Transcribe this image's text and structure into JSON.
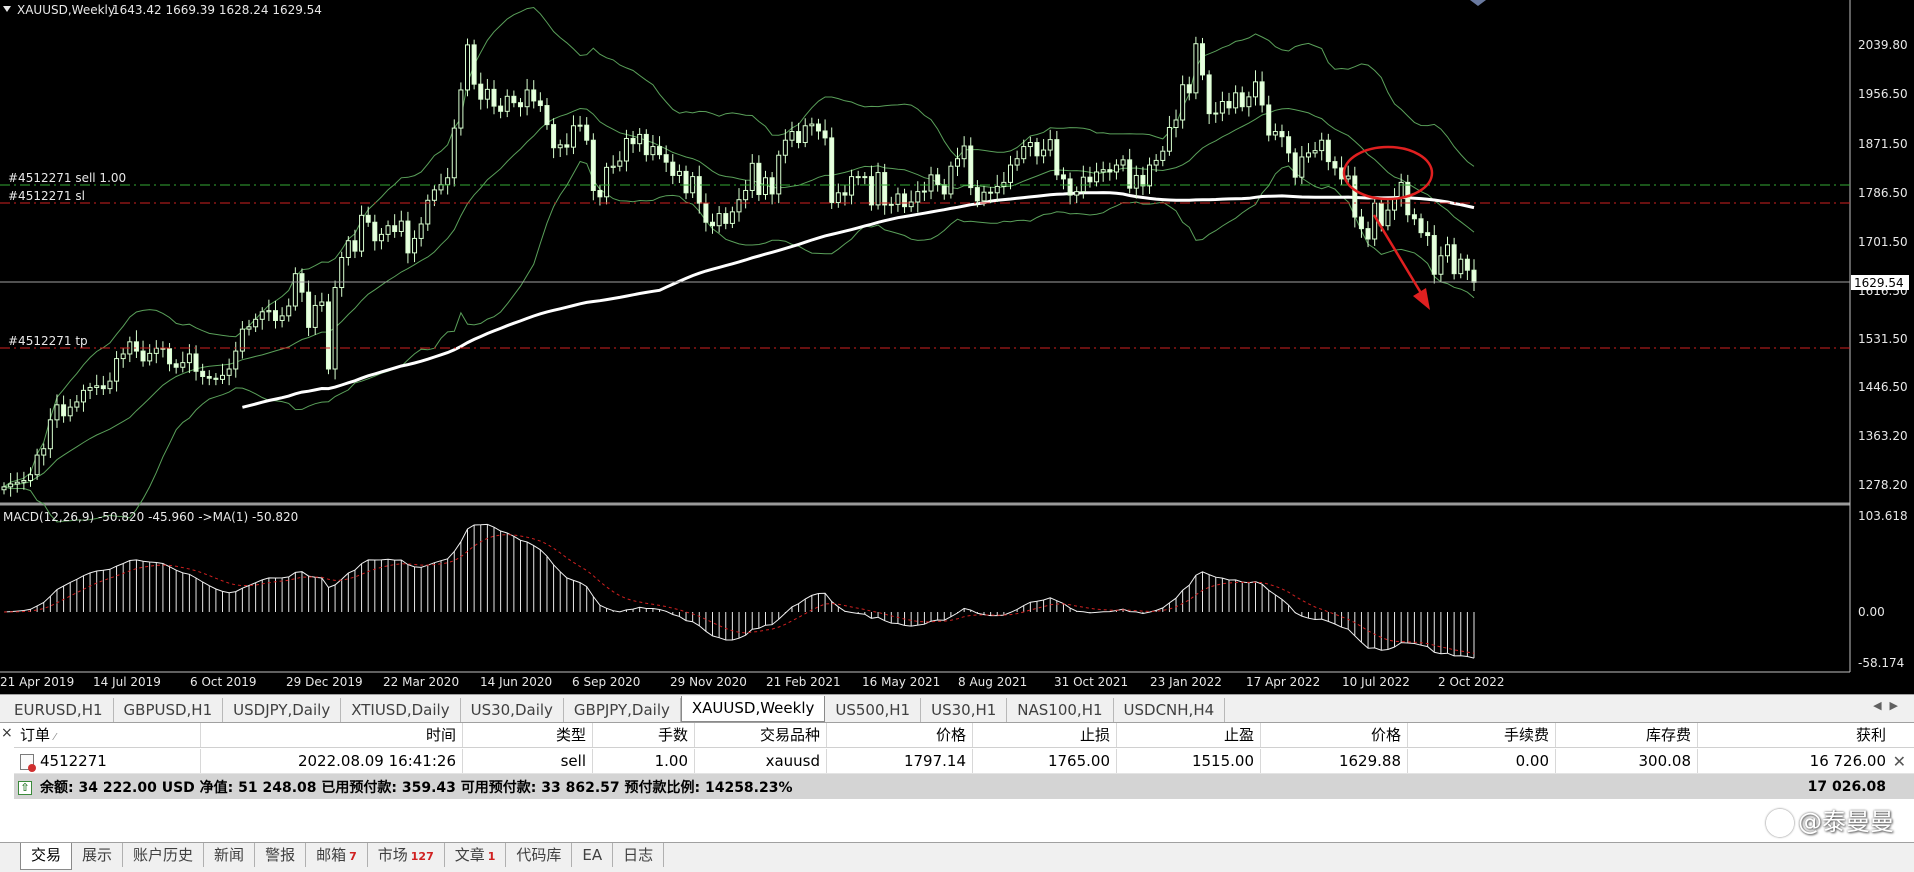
{
  "chart_header": {
    "symbol_label": "XAUUSD,Weekly",
    "ohlc": "1643.42 1669.39 1628.24 1629.54"
  },
  "price_axis": {
    "labels": [
      "2039.80",
      "1956.50",
      "1871.50",
      "1786.50",
      "1701.50",
      "1616.50",
      "1531.50",
      "1446.50",
      "1363.20",
      "1278.20"
    ],
    "current_price": "1629.54"
  },
  "macd_axis": {
    "labels": [
      "103.618",
      "0.00",
      "-58.174"
    ]
  },
  "macd_label": "MACD(12,26,9) -50.820 -45.960  ->MA(1) -50.820",
  "order_lines": {
    "sell_label": "#4512271 sell 1.00",
    "sl_label": "#4512271 sl",
    "tp_label": "#4512271 tp",
    "sell_price": 1797.14,
    "sl_price": 1765.0,
    "tp_price": 1515.0
  },
  "date_axis": [
    "21 Apr 2019",
    "14 Jul 2019",
    "6 Oct 2019",
    "29 Dec 2019",
    "22 Mar 2020",
    "14 Jun 2020",
    "6 Sep 2020",
    "29 Nov 2020",
    "21 Feb 2021",
    "16 May 2021",
    "8 Aug 2021",
    "31 Oct 2021",
    "23 Jan 2022",
    "17 Apr 2022",
    "10 Jul 2022",
    "2 Oct 2022"
  ],
  "chart_data": {
    "type": "candlestick",
    "symbol": "XAUUSD",
    "timeframe": "Weekly",
    "ylim": [
      1200,
      2110
    ],
    "weekly_close": [
      1275,
      1280,
      1283,
      1286,
      1296,
      1330,
      1341,
      1391,
      1417,
      1398,
      1413,
      1422,
      1442,
      1447,
      1450,
      1445,
      1458,
      1497,
      1505,
      1526,
      1510,
      1493,
      1506,
      1515,
      1514,
      1488,
      1482,
      1490,
      1505,
      1475,
      1466,
      1463,
      1461,
      1468,
      1479,
      1510,
      1548,
      1552,
      1565,
      1578,
      1580,
      1563,
      1571,
      1588,
      1644,
      1612,
      1551,
      1589,
      1595,
      1479,
      1620,
      1672,
      1701,
      1683,
      1745,
      1733,
      1701,
      1712,
      1727,
      1717,
      1735,
      1680,
      1705,
      1730,
      1771,
      1789,
      1798,
      1810,
      1896,
      1962,
      2040,
      1972,
      1946,
      1963,
      1934,
      1925,
      1951,
      1940,
      1933,
      1962,
      1943,
      1935,
      1902,
      1862,
      1867,
      1863,
      1900,
      1901,
      1875,
      1788,
      1777,
      1828,
      1830,
      1839,
      1878,
      1869,
      1885,
      1850,
      1864,
      1850,
      1837,
      1814,
      1821,
      1784,
      1812,
      1766,
      1733,
      1727,
      1748,
      1731,
      1751,
      1772,
      1788,
      1835,
      1781,
      1810,
      1782,
      1849,
      1875,
      1890,
      1871,
      1900,
      1903,
      1891,
      1879,
      1767,
      1784,
      1780,
      1812,
      1811,
      1812,
      1763,
      1819,
      1763,
      1764,
      1782,
      1760,
      1768,
      1786,
      1787,
      1815,
      1798,
      1782,
      1830,
      1843,
      1865,
      1793,
      1770,
      1785,
      1784,
      1795,
      1802,
      1832,
      1843,
      1864,
      1871,
      1848,
      1858,
      1876,
      1815,
      1808,
      1780,
      1786,
      1811,
      1803,
      1820,
      1824,
      1820,
      1832,
      1841,
      1792,
      1814,
      1796,
      1832,
      1840,
      1856,
      1897,
      1910,
      1971,
      1957,
      2042,
      1988,
      1921,
      1922,
      1942,
      1931,
      1957,
      1933,
      1950,
      1976,
      1936,
      1884,
      1890,
      1881,
      1853,
      1811,
      1846,
      1853,
      1857,
      1875,
      1838,
      1827,
      1808,
      1813,
      1742,
      1722,
      1704,
      1766,
      1727,
      1754,
      1775,
      1802,
      1746,
      1739,
      1715,
      1710,
      1643,
      1675,
      1694,
      1644,
      1669,
      1650,
      1629
    ]
  }
}
